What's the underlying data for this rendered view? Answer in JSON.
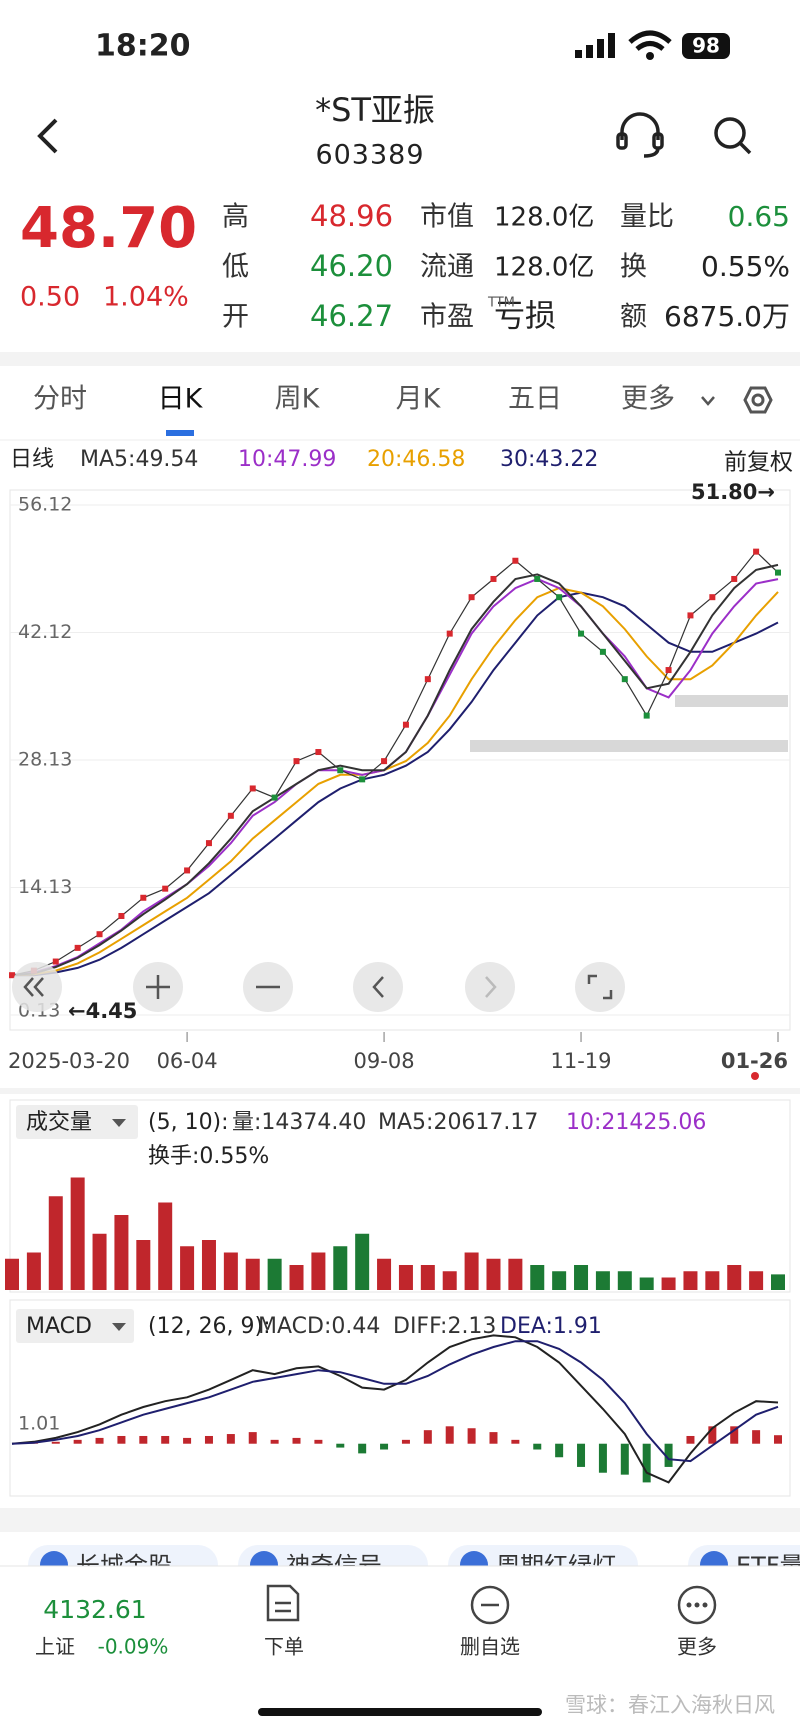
{
  "status": {
    "time": "18:20",
    "battery": "98"
  },
  "header": {
    "title": "*ST亚振",
    "code": "603389"
  },
  "quote": {
    "price": "48.70",
    "change": "0.50",
    "change_pct": "1.04%",
    "rows": [
      {
        "l1": "高",
        "v1": "48.96",
        "l2": "市值",
        "v2": "128.0亿",
        "l3": "量比",
        "v3": "0.65"
      },
      {
        "l1": "低",
        "v1": "46.20",
        "l2": "流通",
        "v2": "128.0亿",
        "l3": "换",
        "v3": "0.55%"
      },
      {
        "l1": "开",
        "v1": "46.27",
        "l2": "市盈",
        "v2": "亏损",
        "l3": "额",
        "v3": "6875.0万"
      }
    ],
    "ttm": "TTM"
  },
  "tabs": [
    "分时",
    "日K",
    "周K",
    "月K",
    "五日",
    "更多"
  ],
  "chart_data": [
    {
      "type": "line",
      "title": "日线",
      "adjust": "前复权",
      "annotations": [
        "51.80→",
        "←4.45"
      ],
      "categories": [
        "2025-03-20",
        null,
        null,
        null,
        null,
        null,
        null,
        null,
        "06-04",
        null,
        null,
        null,
        null,
        null,
        null,
        null,
        null,
        "09-08",
        null,
        null,
        null,
        null,
        null,
        null,
        null,
        null,
        "11-19",
        null,
        null,
        null,
        null,
        null,
        null,
        null,
        null,
        "01-26"
      ],
      "close": [
        4.5,
        5,
        6,
        7.5,
        9,
        11,
        13,
        14,
        16,
        19,
        22,
        25,
        24,
        28,
        29,
        27,
        26,
        28,
        32,
        37,
        42,
        46,
        48,
        50,
        48,
        46,
        42,
        40,
        37,
        33,
        38,
        44,
        46,
        48,
        51,
        48.7
      ],
      "close_color": "#333333",
      "series": [
        {
          "label": "MA5:49.54",
          "color": "#333333",
          "values": [
            4.5,
            4.7,
            5.4,
            6.4,
            7.8,
            9.4,
            11.2,
            12.8,
            14.5,
            16.8,
            19.5,
            22.5,
            24,
            25.5,
            27,
            27.5,
            27,
            27,
            29,
            33,
            38,
            42.5,
            45.5,
            48,
            48.5,
            47.5,
            45,
            42,
            39,
            36,
            36.5,
            40,
            44,
            47,
            49,
            49.54
          ]
        },
        {
          "label": "10:47.99",
          "color": "#9b2fc8",
          "values": [
            4.5,
            4.8,
            5.5,
            6.5,
            8,
            9.5,
            11.5,
            13,
            14.5,
            16.5,
            19,
            22,
            23.5,
            25.5,
            27,
            27,
            26.5,
            27,
            29,
            33,
            37.5,
            42,
            45,
            47,
            48,
            47,
            45,
            42,
            39.5,
            36,
            35,
            38,
            42,
            45,
            47.5,
            47.99
          ]
        },
        {
          "label": "20:46.58",
          "color": "#e8a000",
          "values": [
            4.5,
            4.6,
            5,
            5.8,
            7,
            8.5,
            10,
            11.5,
            13,
            15,
            17,
            19.5,
            21.5,
            23.5,
            25.5,
            26.5,
            26.5,
            27,
            28,
            30,
            33,
            37,
            40.5,
            43.5,
            46,
            47,
            46.5,
            45,
            42.5,
            39.5,
            37,
            37,
            38.5,
            41,
            44,
            46.58
          ]
        },
        {
          "label": "30:43.22",
          "color": "#1f1f6e",
          "values": [
            4.5,
            4.5,
            4.8,
            5.3,
            6.2,
            7.5,
            9,
            10.5,
            12,
            13.5,
            15.5,
            17.5,
            19.5,
            21.5,
            23.5,
            25,
            26,
            26.5,
            27.5,
            29,
            31.5,
            34.5,
            38,
            41,
            44,
            46,
            46.5,
            46,
            45,
            43,
            41,
            40,
            40,
            41,
            42,
            43.22
          ]
        }
      ],
      "ylim": [
        0.13,
        56.12
      ],
      "yticks": [
        56.12,
        42.12,
        28.13,
        14.13,
        0.13
      ],
      "grid": true
    },
    {
      "type": "bar",
      "title": "成交量",
      "params": "(5, 10):",
      "legend": [
        {
          "label": "量:14374.40",
          "color": "#333333"
        },
        {
          "label": "MA5:20617.17",
          "color": "#333333"
        },
        {
          "label": "10:21425.06",
          "color": "#9b2fc8"
        }
      ],
      "turnover": "换手:0.55%",
      "values": [
        5,
        6,
        15,
        18,
        9,
        12,
        8,
        14,
        7,
        8,
        6,
        5,
        5,
        4,
        6,
        7,
        9,
        5,
        4,
        4,
        3,
        6,
        5,
        5,
        4,
        3,
        4,
        3,
        3,
        2,
        2,
        3,
        3,
        4,
        3,
        2.5
      ],
      "up_color": "#c0262c",
      "down_color": "#1c7a34",
      "ylim": [
        0,
        20
      ]
    },
    {
      "type": "macd",
      "title": "MACD",
      "params": "(12, 26, 9):",
      "legend": [
        {
          "label": "MACD:0.44",
          "color": "#333333"
        },
        {
          "label": "DIFF:2.13",
          "color": "#333333"
        },
        {
          "label": "DEA:1.91",
          "color": "#1f1f6e"
        }
      ],
      "hist": [
        0,
        0.05,
        0.1,
        0.2,
        0.3,
        0.4,
        0.4,
        0.4,
        0.3,
        0.4,
        0.5,
        0.6,
        0.2,
        0.3,
        0.2,
        -0.2,
        -0.5,
        -0.3,
        0.2,
        0.7,
        0.9,
        0.8,
        0.6,
        0.2,
        -0.3,
        -0.7,
        -1.2,
        -1.5,
        -1.6,
        -2,
        -1.2,
        0.4,
        0.9,
        0.9,
        0.7,
        0.44
      ],
      "series": [
        {
          "color": "#222222",
          "values": [
            0,
            0.1,
            0.3,
            0.6,
            1,
            1.5,
            1.9,
            2.2,
            2.4,
            2.8,
            3.3,
            3.8,
            3.6,
            3.9,
            4,
            3.5,
            2.9,
            2.8,
            3.3,
            4.2,
            5,
            5.4,
            5.6,
            5.5,
            5,
            4.2,
            3,
            1.8,
            0.5,
            -1.5,
            -2,
            -0.5,
            0.8,
            1.6,
            2.2,
            2.13
          ]
        },
        {
          "color": "#1f1f6e",
          "values": [
            0,
            0.05,
            0.2,
            0.4,
            0.7,
            1.1,
            1.5,
            1.8,
            2.1,
            2.4,
            2.8,
            3.2,
            3.4,
            3.6,
            3.8,
            3.7,
            3.4,
            3.1,
            3.1,
            3.5,
            4.1,
            4.6,
            5,
            5.3,
            5.3,
            4.9,
            4.2,
            3.3,
            2.1,
            0.5,
            -0.8,
            -0.9,
            -0.1,
            0.7,
            1.5,
            1.91
          ]
        }
      ],
      "up_color": "#c0262c",
      "down_color": "#1c7a34",
      "ylim": [
        -2.6,
        6.5
      ],
      "yticks": [
        1.01
      ]
    }
  ],
  "chips": [
    "长城金股",
    "神奇信号",
    "周期红绿灯",
    "ETF量"
  ],
  "nav": {
    "index_value": "4132.61",
    "index_name": "上证",
    "index_change": "-0.09%",
    "items": [
      "下单",
      "删自选",
      "更多"
    ]
  },
  "watermark": "雪球：春江入海秋日风"
}
